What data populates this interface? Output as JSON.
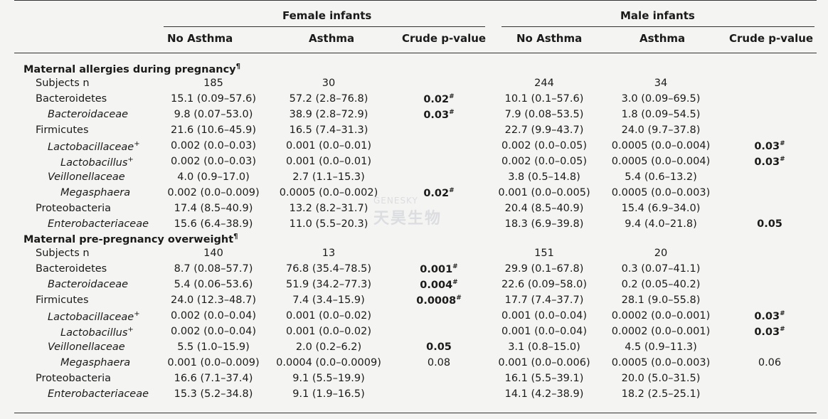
{
  "header": {
    "group_female": "Female infants",
    "group_male": "Male infants",
    "col_no_asthma": "No Asthma",
    "col_asthma": "Asthma",
    "col_pvalue": "Crude p-value"
  },
  "sections": [
    {
      "title": "Maternal allergies during pregnancy",
      "title_mark": "¶",
      "rows": [
        {
          "label": "Subjects n",
          "style": "plain",
          "sup": "",
          "f_no": "185",
          "f_yes": "30",
          "f_p": "",
          "f_p_bold": false,
          "f_p_mark": "",
          "m_no": "244",
          "m_yes": "34",
          "m_p": "",
          "m_p_bold": false,
          "m_p_mark": ""
        },
        {
          "label": "Bacteroidetes",
          "style": "plain",
          "sup": "",
          "f_no": "15.1 (0.09–57.6)",
          "f_yes": "57.2 (2.8–76.8)",
          "f_p": "0.02",
          "f_p_bold": true,
          "f_p_mark": "#",
          "m_no": "10.1 (0.1–57.6)",
          "m_yes": "3.0 (0.09–69.5)",
          "m_p": "",
          "m_p_bold": false,
          "m_p_mark": ""
        },
        {
          "label": "Bacteroidaceae",
          "style": "it",
          "sup": "",
          "f_no": "9.8 (0.07–53.0)",
          "f_yes": "38.9 (2.8–72.9)",
          "f_p": "0.03",
          "f_p_bold": true,
          "f_p_mark": "#",
          "m_no": "7.9 (0.08–53.5)",
          "m_yes": "1.8 (0.09–54.5)",
          "m_p": "",
          "m_p_bold": false,
          "m_p_mark": ""
        },
        {
          "label": "Firmicutes",
          "style": "plain",
          "sup": "",
          "f_no": "21.6 (10.6–45.9)",
          "f_yes": "16.5 (7.4–31.3)",
          "f_p": "",
          "f_p_bold": false,
          "f_p_mark": "",
          "m_no": "22.7 (9.9–43.7)",
          "m_yes": "24.0 (9.7–37.8)",
          "m_p": "",
          "m_p_bold": false,
          "m_p_mark": ""
        },
        {
          "label": "Lactobacillaceae",
          "style": "it",
          "sup": "+",
          "f_no": "0.002 (0.0–0.03)",
          "f_yes": "0.001 (0.0–0.01)",
          "f_p": "",
          "f_p_bold": false,
          "f_p_mark": "",
          "m_no": "0.002 (0.0–0.05)",
          "m_yes": "0.0005 (0.0–0.004)",
          "m_p": "0.03",
          "m_p_bold": true,
          "m_p_mark": "#"
        },
        {
          "label": "Lactobacillus",
          "style": "it2",
          "sup": "+",
          "f_no": "0.002 (0.0–0.03)",
          "f_yes": "0.001 (0.0–0.01)",
          "f_p": "",
          "f_p_bold": false,
          "f_p_mark": "",
          "m_no": "0.002 (0.0–0.05)",
          "m_yes": "0.0005 (0.0–0.004)",
          "m_p": "0.03",
          "m_p_bold": true,
          "m_p_mark": "#"
        },
        {
          "label": "Veillonellaceae",
          "style": "it",
          "sup": "",
          "f_no": "4.0 (0.9–17.0)",
          "f_yes": "2.7 (1.1–15.3)",
          "f_p": "",
          "f_p_bold": false,
          "f_p_mark": "",
          "m_no": "3.8 (0.5–14.8)",
          "m_yes": "5.4 (0.6–13.2)",
          "m_p": "",
          "m_p_bold": false,
          "m_p_mark": ""
        },
        {
          "label": "Megasphaera",
          "style": "it2",
          "sup": "",
          "f_no": "0.002 (0.0–0.009)",
          "f_yes": "0.0005 (0.0–0.002)",
          "f_p": "0.02",
          "f_p_bold": true,
          "f_p_mark": "#",
          "m_no": "0.001 (0.0–0.005)",
          "m_yes": "0.0005 (0.0–0.003)",
          "m_p": "",
          "m_p_bold": false,
          "m_p_mark": ""
        },
        {
          "label": "Proteobacteria",
          "style": "plain",
          "sup": "",
          "f_no": "17.4 (8.5–40.9)",
          "f_yes": "13.2 (8.2–31.7)",
          "f_p": "",
          "f_p_bold": false,
          "f_p_mark": "",
          "m_no": "20.4 (8.5–40.9)",
          "m_yes": "15.4 (6.9–34.0)",
          "m_p": "",
          "m_p_bold": false,
          "m_p_mark": ""
        },
        {
          "label": "Enterobacteriaceae",
          "style": "it",
          "sup": "",
          "f_no": "15.6 (6.4–38.9)",
          "f_yes": "11.0 (5.5–20.3)",
          "f_p": "",
          "f_p_bold": false,
          "f_p_mark": "",
          "m_no": "18.3 (6.9–39.8)",
          "m_yes": "9.4 (4.0–21.8)",
          "m_p": "0.05",
          "m_p_bold": true,
          "m_p_mark": ""
        }
      ]
    },
    {
      "title": "Maternal pre-pregnancy overweight",
      "title_mark": "¶",
      "rows": [
        {
          "label": "Subjects n",
          "style": "plain",
          "sup": "",
          "f_no": "140",
          "f_yes": "13",
          "f_p": "",
          "f_p_bold": false,
          "f_p_mark": "",
          "m_no": "151",
          "m_yes": "20",
          "m_p": "",
          "m_p_bold": false,
          "m_p_mark": ""
        },
        {
          "label": "Bacteroidetes",
          "style": "plain",
          "sup": "",
          "f_no": "8.7 (0.08–57.7)",
          "f_yes": "76.8 (35.4–78.5)",
          "f_p": "0.001",
          "f_p_bold": true,
          "f_p_mark": "#",
          "m_no": "29.9 (0.1–67.8)",
          "m_yes": "0.3 (0.07–41.1)",
          "m_p": "",
          "m_p_bold": false,
          "m_p_mark": ""
        },
        {
          "label": "Bacteroidaceae",
          "style": "it",
          "sup": "",
          "f_no": "5.4 (0.06–53.6)",
          "f_yes": "51.9 (34.2–77.3)",
          "f_p": "0.004",
          "f_p_bold": true,
          "f_p_mark": "#",
          "m_no": "22.6 (0.09–58.0)",
          "m_yes": "0.2 (0.05–40.2)",
          "m_p": "",
          "m_p_bold": false,
          "m_p_mark": ""
        },
        {
          "label": "Firmicutes",
          "style": "plain",
          "sup": "",
          "f_no": "24.0 (12.3–48.7)",
          "f_yes": "7.4 (3.4–15.9)",
          "f_p": "0.0008",
          "f_p_bold": true,
          "f_p_mark": "#",
          "m_no": "17.7 (7.4–37.7)",
          "m_yes": "28.1 (9.0–55.8)",
          "m_p": "",
          "m_p_bold": false,
          "m_p_mark": ""
        },
        {
          "label": "Lactobacillaceae",
          "style": "it",
          "sup": "+",
          "f_no": "0.002 (0.0–0.04)",
          "f_yes": "0.001 (0.0–0.02)",
          "f_p": "",
          "f_p_bold": false,
          "f_p_mark": "",
          "m_no": "0.001 (0.0–0.04)",
          "m_yes": "0.0002 (0.0–0.001)",
          "m_p": "0.03",
          "m_p_bold": true,
          "m_p_mark": "#"
        },
        {
          "label": "Lactobacillus",
          "style": "it2",
          "sup": "+",
          "f_no": "0.002 (0.0–0.04)",
          "f_yes": "0.001 (0.0–0.02)",
          "f_p": "",
          "f_p_bold": false,
          "f_p_mark": "",
          "m_no": "0.001 (0.0–0.04)",
          "m_yes": "0.0002 (0.0–0.001)",
          "m_p": "0.03",
          "m_p_bold": true,
          "m_p_mark": "#"
        },
        {
          "label": "Veillonellaceae",
          "style": "it",
          "sup": "",
          "f_no": "5.5 (1.0–15.9)",
          "f_yes": "2.0 (0.2–6.2)",
          "f_p": "0.05",
          "f_p_bold": true,
          "f_p_mark": "",
          "m_no": "3.1 (0.8–15.0)",
          "m_yes": "4.5 (0.9–11.3)",
          "m_p": "",
          "m_p_bold": false,
          "m_p_mark": ""
        },
        {
          "label": "Megasphaera",
          "style": "it2",
          "sup": "",
          "f_no": "0.001 (0.0–0.009)",
          "f_yes": "0.0004 (0.0–0.0009)",
          "f_p": "0.08",
          "f_p_bold": false,
          "f_p_mark": "",
          "m_no": "0.001 (0.0–0.006)",
          "m_yes": "0.0005 (0.0–0.003)",
          "m_p": "0.06",
          "m_p_bold": false,
          "m_p_mark": ""
        },
        {
          "label": "Proteobacteria",
          "style": "plain",
          "sup": "",
          "f_no": "16.6 (7.1–37.4)",
          "f_yes": "9.1 (5.5–19.9)",
          "f_p": "",
          "f_p_bold": false,
          "f_p_mark": "",
          "m_no": "16.1 (5.5–39.1)",
          "m_yes": "20.0 (5.0–31.5)",
          "m_p": "",
          "m_p_bold": false,
          "m_p_mark": ""
        },
        {
          "label": "Enterobacteriaceae",
          "style": "it",
          "sup": "",
          "f_no": "15.3 (5.2–34.8)",
          "f_yes": "9.1 (1.9–16.5)",
          "f_p": "",
          "f_p_bold": false,
          "f_p_mark": "",
          "m_no": "14.1 (4.2–38.9)",
          "m_yes": "18.2 (2.5–25.1)",
          "m_p": "",
          "m_p_bold": false,
          "m_p_mark": ""
        }
      ]
    }
  ],
  "watermark": {
    "latin": "GENESKY",
    "chinese": "天昊生物"
  }
}
